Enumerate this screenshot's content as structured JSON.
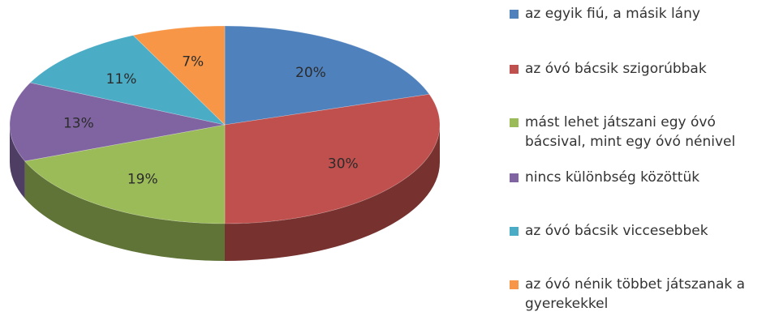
{
  "chart_data": {
    "type": "pie",
    "style": "3d",
    "slices": [
      {
        "name": "az egyik fiú, a másik lány",
        "value": 20,
        "label": "20%",
        "color": "#4F81BD"
      },
      {
        "name": "az óvó bácsik szigorúbbak",
        "value": 30,
        "label": "30%",
        "color": "#C0504D"
      },
      {
        "name": "mást lehet játszani egy óvó\nbácsival, mint egy óvó nénivel",
        "value": 19,
        "label": "19%",
        "color": "#9BBB59"
      },
      {
        "name": "nincs különbség közöttük",
        "value": 13,
        "label": "13%",
        "color": "#8064A2"
      },
      {
        "name": "az óvó bácsik viccesebbek",
        "value": 11,
        "label": "11%",
        "color": "#4BACC6"
      },
      {
        "name": "az óvó nénik többet játszanak a\ngyerekekkel",
        "value": 7,
        "label": "7%",
        "color": "#F79646"
      }
    ],
    "legend_position": "right"
  }
}
